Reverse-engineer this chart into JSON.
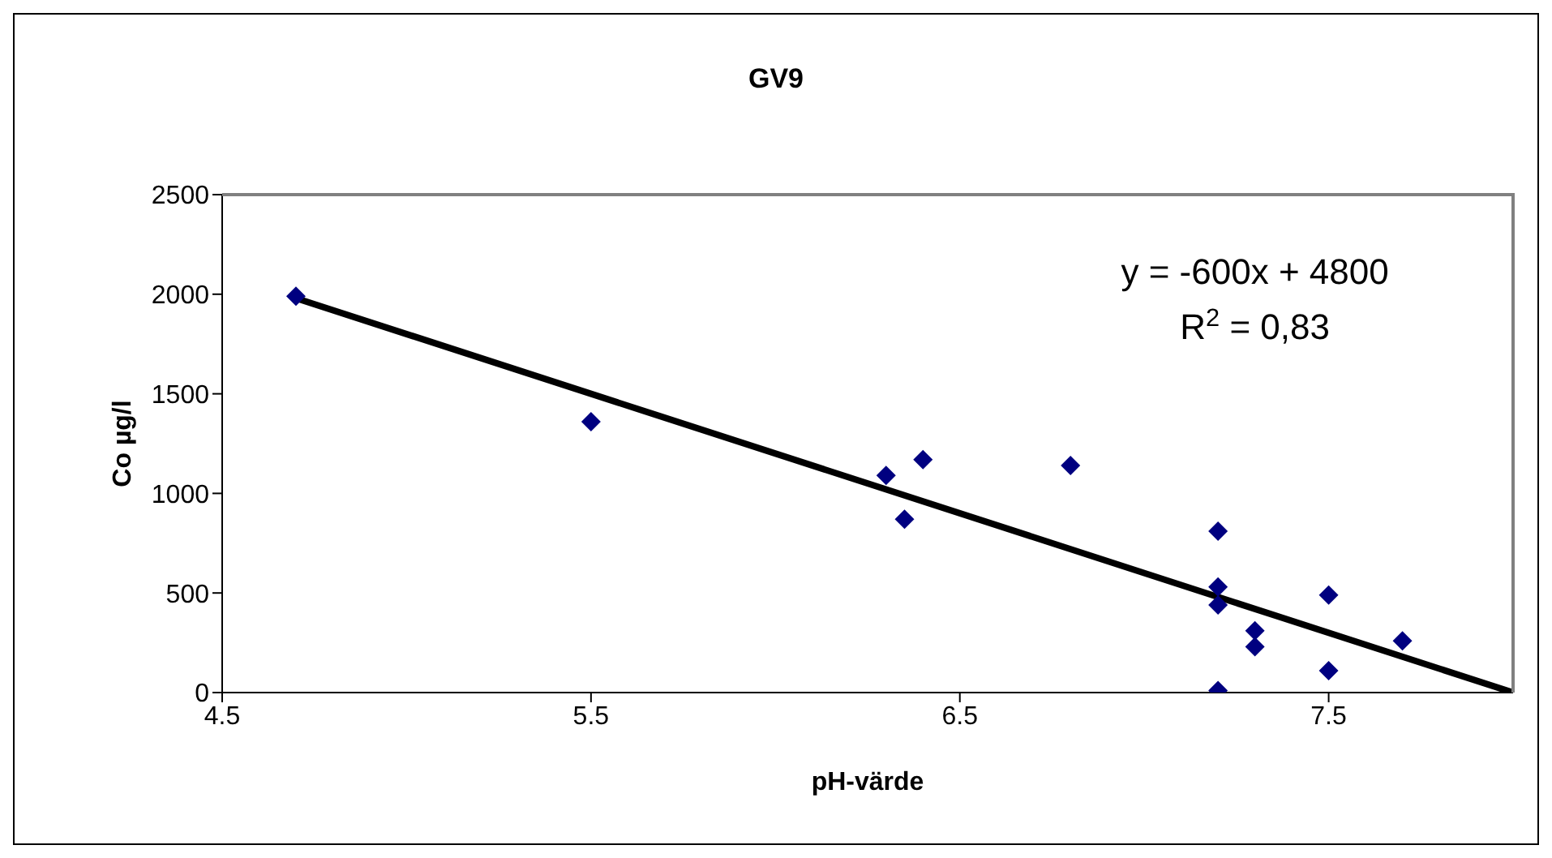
{
  "chart_data": {
    "type": "scatter",
    "title": "GV9",
    "xlabel": "pH-värde",
    "ylabel": "Co µg/l",
    "xlim": [
      4.5,
      8
    ],
    "xticks": [
      4.5,
      5.5,
      6.5,
      7.5
    ],
    "ylim": [
      0,
      2500
    ],
    "yticks": [
      0,
      500,
      1000,
      1500,
      2000,
      2500
    ],
    "marker": "diamond",
    "series": [
      {
        "color": "#000080",
        "x": [
          4.7,
          5.5,
          6.3,
          6.35,
          6.4,
          6.8,
          7.2,
          7.2,
          7.2,
          7.2,
          7.3,
          7.3,
          7.5,
          7.5,
          7.7
        ],
        "values": [
          1990,
          1360,
          1090,
          870,
          1170,
          1140,
          810,
          530,
          440,
          10,
          310,
          230,
          490,
          110,
          260
        ]
      },
      {
        "type": "line",
        "color": "#000000",
        "marker": "none",
        "x": [
          4.7,
          8
        ],
        "values": [
          1980,
          0
        ]
      }
    ],
    "annotations": [
      "y = -600x + 4800",
      "R$^{2}$ = 0,83"
    ]
  }
}
